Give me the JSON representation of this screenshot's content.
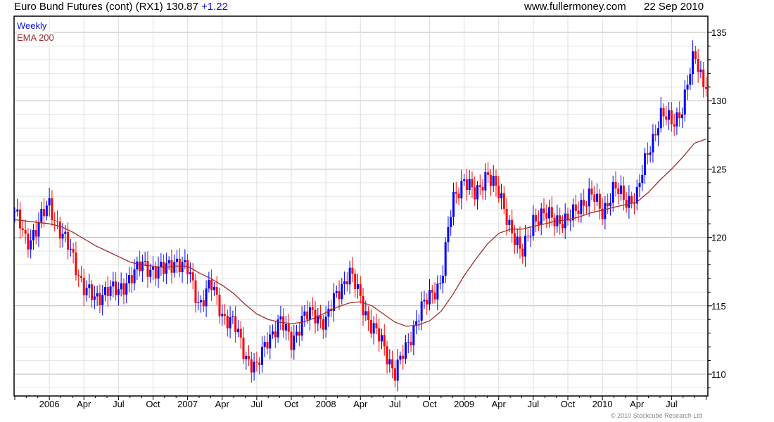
{
  "header": {
    "title": "Euro Bund Futures (cont) (RX1) 130.87",
    "change": "+1.22",
    "site": "www.fullermoney.com",
    "date": "22 Sep 2010"
  },
  "copyright": "© 2010 Stockcube Research Ltd",
  "colors": {
    "up": "#0000ff",
    "down": "#ff0000",
    "ema": "#a52a2a",
    "legend_weekly": "#1010dd"
  },
  "chart_data": {
    "type": "candlestick",
    "title": "Euro Bund Futures (cont) (RX1)",
    "legend": [
      "Weekly",
      "EMA 200"
    ],
    "legend_position": "top-left",
    "ylim": [
      108.5,
      135.9
    ],
    "yticks": [
      110,
      115,
      120,
      125,
      130,
      135
    ],
    "xticks": [
      "2006",
      "Apr",
      "Jul",
      "Oct",
      "2007",
      "Apr",
      "Jul",
      "Oct",
      "2008",
      "Apr",
      "Jul",
      "Oct",
      "2009",
      "Apr",
      "Jul",
      "Oct",
      "2010",
      "Apr",
      "Jul"
    ],
    "start_month": "2005-10",
    "monthly_close": [
      121.9,
      119.5,
      121,
      122.3,
      120.5,
      118.5,
      116.5,
      115.2,
      116.5,
      115.8,
      117.3,
      117.8,
      117.8,
      117.5,
      118.5,
      117.5,
      115.2,
      116.5,
      114.5,
      113.6,
      111.5,
      110.3,
      112.8,
      113.8,
      112.5,
      114,
      114.5,
      113.8,
      116,
      117.5,
      115.5,
      113.5,
      112,
      110.2,
      111.8,
      114.5,
      115.5,
      117,
      122.5,
      124.5,
      122.8,
      125,
      123,
      121,
      118.5,
      121.5,
      121.5,
      121.5,
      121,
      122.5,
      123,
      122,
      123.5,
      122.8,
      123,
      126.5,
      128.8,
      128.5,
      129.5,
      133.5,
      130.87
    ],
    "ema200": [
      121.3,
      121.2,
      121.1,
      121.0,
      120.8,
      120.4,
      119.9,
      119.4,
      119.0,
      118.6,
      118.2,
      118.0,
      117.9,
      117.8,
      117.9,
      117.9,
      117.4,
      117.0,
      116.5,
      115.9,
      115.1,
      114.4,
      114.0,
      113.8,
      113.7,
      113.8,
      114.1,
      114.5,
      114.9,
      115.2,
      115.3,
      115.0,
      114.4,
      113.8,
      113.5,
      113.6,
      113.9,
      114.6,
      115.8,
      117.2,
      118.4,
      119.5,
      120.3,
      120.6,
      120.6,
      120.8,
      121.0,
      121.2,
      121.3,
      121.5,
      121.8,
      122.0,
      122.2,
      122.4,
      122.6,
      123.3,
      124.2,
      125.0,
      125.9,
      126.9,
      127.2
    ],
    "last": 130.87,
    "change": 1.22
  }
}
